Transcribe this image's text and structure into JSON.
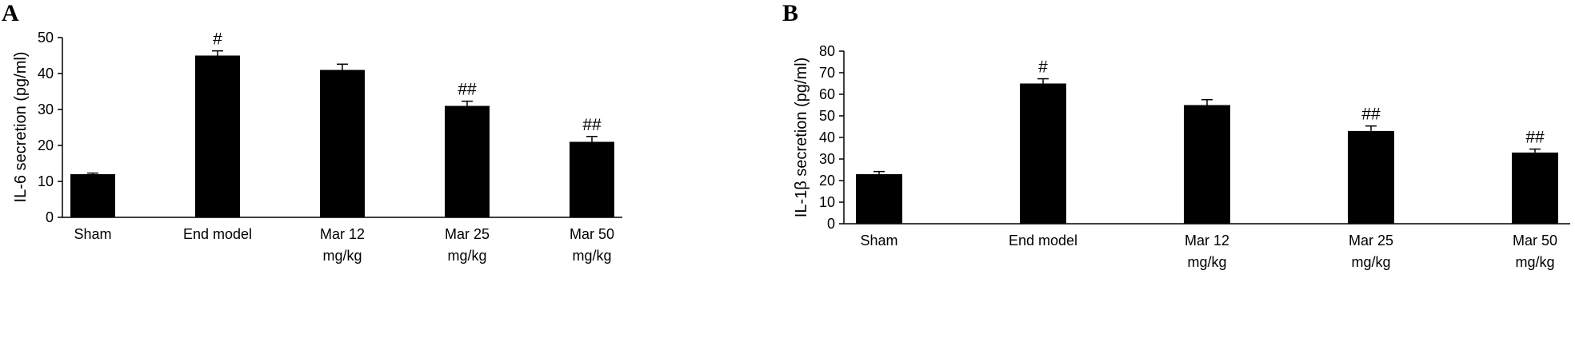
{
  "chart_data": [
    {
      "panel": "A",
      "type": "bar",
      "categories": [
        [
          "Sham"
        ],
        [
          "End model"
        ],
        [
          "Mar 12",
          "mg/kg"
        ],
        [
          "Mar 25",
          "mg/kg"
        ],
        [
          "Mar 50",
          "mg/kg"
        ]
      ],
      "values": [
        12,
        45,
        41,
        31,
        21
      ],
      "errors": [
        0.3,
        1.3,
        1.6,
        1.3,
        1.5
      ],
      "annotations": [
        "",
        "#",
        "",
        "##",
        "##"
      ],
      "ylabel": "IL-6 secretion (pg/ml)",
      "ylim": [
        0,
        50
      ],
      "yticks": [
        0,
        10,
        20,
        30,
        40,
        50
      ],
      "bar_color": "#000000"
    },
    {
      "panel": "B",
      "type": "bar",
      "categories": [
        [
          "Sham"
        ],
        [
          "End model"
        ],
        [
          "Mar 12",
          "mg/kg"
        ],
        [
          "Mar 25",
          "mg/kg"
        ],
        [
          "Mar 50",
          "mg/kg"
        ]
      ],
      "values": [
        23,
        65,
        55,
        43,
        33
      ],
      "errors": [
        1.2,
        2.2,
        2.5,
        2.3,
        1.6
      ],
      "annotations": [
        "",
        "#",
        "",
        "##",
        "##"
      ],
      "ylabel": "IL-1β secretion (pg/ml)",
      "ylim": [
        0,
        80
      ],
      "yticks": [
        0,
        10,
        20,
        30,
        40,
        50,
        60,
        70,
        80
      ],
      "bar_color": "#000000"
    }
  ]
}
